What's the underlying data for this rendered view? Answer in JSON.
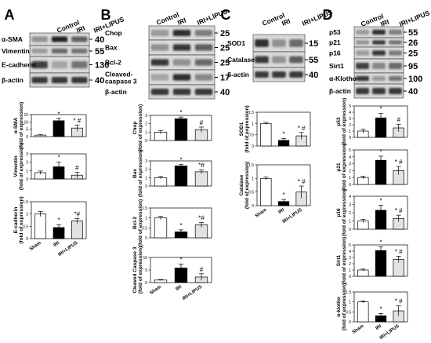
{
  "panels": [
    {
      "letter": "A",
      "columns": [
        "Control",
        "IRI",
        "IRI+LIPUS"
      ],
      "blots": [
        {
          "name": "α-SMA",
          "kda": "40"
        },
        {
          "name": "Vimentin",
          "kda": "55"
        },
        {
          "name": "E-cadherin",
          "kda": "130"
        },
        {
          "name": "β-actin",
          "kda": "40"
        }
      ]
    },
    {
      "letter": "B",
      "columns": [
        "Control",
        "IRI",
        "IRI+LIPUS"
      ],
      "blots": [
        {
          "name": "Chop",
          "kda": "25"
        },
        {
          "name": "Bax",
          "kda": "25"
        },
        {
          "name": "Bcl-2",
          "kda": "25"
        },
        {
          "name": "Cleaved-caspase 3",
          "kda": "17"
        },
        {
          "name": "β-actin",
          "kda": "40"
        }
      ]
    },
    {
      "letter": "C",
      "columns": [
        "Control",
        "IRI",
        "IRI+LIPUS"
      ],
      "blots": [
        {
          "name": "SOD1",
          "kda": "15"
        },
        {
          "name": "Catalase",
          "kda": "55"
        },
        {
          "name": "β-actin",
          "kda": "40"
        }
      ]
    },
    {
      "letter": "D",
      "columns": [
        "Control",
        "IRI",
        "IRI+LIPUS"
      ],
      "blots": [
        {
          "name": "p53",
          "kda": "55"
        },
        {
          "name": "p21",
          "kda": "26"
        },
        {
          "name": "p16",
          "kda": "25"
        },
        {
          "name": "Sirt1",
          "kda": "95"
        },
        {
          "name": "α-Klotho",
          "kda": "100"
        },
        {
          "name": "β-actin",
          "kda": "40"
        }
      ]
    }
  ],
  "chart_data": [
    {
      "panel": "A",
      "type": "bar",
      "ylabel": "α-SMA",
      "ylabel2": "(fold of expression)",
      "ylim": [
        0,
        15
      ],
      "yticks": [
        "0",
        "5",
        "10",
        "15"
      ],
      "categories": [
        "Sham",
        "IRI",
        "IRI+LIPUS"
      ],
      "values": [
        1,
        10.8,
        5.8
      ],
      "errors": [
        0.3,
        1.6,
        2.1
      ],
      "annotations": [
        "",
        "*",
        "* #"
      ],
      "colors": [
        "#ffffff",
        "#000000",
        "#e2e2e2"
      ],
      "show_xticks": false
    },
    {
      "panel": "A",
      "type": "bar",
      "ylabel": "Vimentin",
      "ylabel2": "(fold of expression)",
      "ylim": [
        0,
        3
      ],
      "yticks": [
        "0",
        "1",
        "2",
        "3"
      ],
      "categories": [
        "Sham",
        "IRI",
        "IRI+LIPUS"
      ],
      "values": [
        0.75,
        1.45,
        0.45
      ],
      "errors": [
        0.2,
        0.55,
        0.35
      ],
      "annotations": [
        "",
        "*",
        "#"
      ],
      "colors": [
        "#ffffff",
        "#000000",
        "#e2e2e2"
      ],
      "show_xticks": false
    },
    {
      "panel": "A",
      "type": "bar",
      "ylabel": "E-cadherin",
      "ylabel2": "(fold of expression)",
      "ylim": [
        0,
        1.5
      ],
      "yticks": [
        "0",
        "0.5",
        "1",
        "1.5"
      ],
      "categories": [
        "Sham",
        "IRI",
        "IRI+LIPUS"
      ],
      "values": [
        1,
        0.45,
        0.72
      ],
      "errors": [
        0.1,
        0.12,
        0.1
      ],
      "annotations": [
        "",
        "*",
        "*#"
      ],
      "colors": [
        "#ffffff",
        "#000000",
        "#e2e2e2"
      ],
      "show_xticks": true
    },
    {
      "panel": "B",
      "type": "bar",
      "ylabel": "Chop",
      "ylabel2": "(fold of expression)",
      "ylim": [
        0,
        3
      ],
      "yticks": [
        "0",
        "1",
        "2",
        "3"
      ],
      "categories": [
        "Sham",
        "IRI",
        "IRI+LIPUS"
      ],
      "values": [
        1,
        2.6,
        1.3
      ],
      "errors": [
        0.2,
        0.2,
        0.3
      ],
      "annotations": [
        "",
        "*",
        "#"
      ],
      "colors": [
        "#ffffff",
        "#000000",
        "#e2e2e2"
      ],
      "show_xticks": false
    },
    {
      "panel": "B",
      "type": "bar",
      "ylabel": "Bax",
      "ylabel2": "(fold of expression)",
      "ylim": [
        0,
        3
      ],
      "yticks": [
        "0",
        "1",
        "2",
        "3"
      ],
      "categories": [
        "Sham",
        "IRI",
        "IRI+LIPUS"
      ],
      "values": [
        1,
        2.4,
        1.7
      ],
      "errors": [
        0.15,
        0.2,
        0.25
      ],
      "annotations": [
        "",
        "*",
        "*#"
      ],
      "colors": [
        "#ffffff",
        "#000000",
        "#e2e2e2"
      ],
      "show_xticks": false
    },
    {
      "panel": "B",
      "type": "bar",
      "ylabel": "Bcl-2",
      "ylabel2": "(fold of expression)",
      "ylim": [
        0,
        1.5
      ],
      "yticks": [
        "0",
        "0.5",
        "1",
        "1.5"
      ],
      "categories": [
        "Sham",
        "IRI",
        "IRI+LIPUS"
      ],
      "values": [
        1,
        0.3,
        0.65
      ],
      "errors": [
        0.08,
        0.1,
        0.12
      ],
      "annotations": [
        "",
        "*",
        "*#"
      ],
      "colors": [
        "#ffffff",
        "#000000",
        "#e2e2e2"
      ],
      "show_xticks": false
    },
    {
      "panel": "B",
      "type": "bar",
      "ylabel": "Cleaved Caspase 3",
      "ylabel2": "(fold of expression)",
      "ylim": [
        0,
        10
      ],
      "yticks": [
        "0",
        "5",
        "10"
      ],
      "categories": [
        "Sham",
        "IRI",
        "IRI+LIPUS"
      ],
      "values": [
        1,
        5.8,
        2.2
      ],
      "errors": [
        0.2,
        1.6,
        1.3
      ],
      "annotations": [
        "",
        "*",
        "#"
      ],
      "colors": [
        "#ffffff",
        "#000000",
        "#e2e2e2"
      ],
      "show_xticks": true
    },
    {
      "panel": "C",
      "type": "bar",
      "ylabel": "SOD1",
      "ylabel2": "(fold of expression)",
      "ylim": [
        0,
        1.5
      ],
      "yticks": [
        "0",
        "0.5",
        "1",
        "1.5"
      ],
      "categories": [
        "Sham",
        "IRI",
        "IRI+LIPUS"
      ],
      "values": [
        1,
        0.25,
        0.45
      ],
      "errors": [
        0.05,
        0.08,
        0.15
      ],
      "annotations": [
        "",
        "*",
        "* #"
      ],
      "colors": [
        "#ffffff",
        "#000000",
        "#e2e2e2"
      ],
      "show_xticks": false
    },
    {
      "panel": "C",
      "type": "bar",
      "ylabel": "Catalase",
      "ylabel2": "(fold of expression)",
      "ylim": [
        0,
        1.5
      ],
      "yticks": [
        "0",
        "0.5",
        "1",
        "1.5"
      ],
      "categories": [
        "Sham",
        "IRI",
        "IRI+LIPUS"
      ],
      "values": [
        1,
        0.15,
        0.5
      ],
      "errors": [
        0.05,
        0.08,
        0.22
      ],
      "annotations": [
        "",
        "*",
        "* #"
      ],
      "colors": [
        "#ffffff",
        "#000000",
        "#e2e2e2"
      ],
      "show_xticks": true
    },
    {
      "panel": "D",
      "type": "bar",
      "ylabel": "p53",
      "ylabel2": "(fold of expression)",
      "ylim": [
        0,
        5
      ],
      "yticks": [
        "0",
        "1",
        "2",
        "3",
        "4",
        "5"
      ],
      "categories": [
        "Sham",
        "IRI",
        "IRI+LIPUS"
      ],
      "values": [
        1,
        3.1,
        1.5
      ],
      "errors": [
        0.3,
        0.7,
        0.6
      ],
      "annotations": [
        "",
        "*",
        "#"
      ],
      "colors": [
        "#ffffff",
        "#000000",
        "#e2e2e2"
      ],
      "show_xticks": false
    },
    {
      "panel": "D",
      "type": "bar",
      "ylabel": "p21",
      "ylabel2": "(fold of expression)",
      "ylim": [
        0,
        5
      ],
      "yticks": [
        "0",
        "1",
        "2",
        "3",
        "4",
        "5"
      ],
      "categories": [
        "Sham",
        "IRI",
        "IRI+LIPUS"
      ],
      "values": [
        1,
        3.5,
        2
      ],
      "errors": [
        0.2,
        0.6,
        0.6
      ],
      "annotations": [
        "",
        "*",
        "* #"
      ],
      "colors": [
        "#ffffff",
        "#000000",
        "#e2e2e2"
      ],
      "show_xticks": false
    },
    {
      "panel": "D",
      "type": "bar",
      "ylabel": "p16",
      "ylabel2": "(fold of expression)",
      "ylim": [
        0,
        4
      ],
      "yticks": [
        "0",
        "1",
        "2",
        "3",
        "4"
      ],
      "categories": [
        "Sham",
        "IRI",
        "IRI+LIPUS"
      ],
      "values": [
        1,
        2.3,
        1.3
      ],
      "errors": [
        0.2,
        0.6,
        0.4
      ],
      "annotations": [
        "",
        "*",
        "* #"
      ],
      "colors": [
        "#ffffff",
        "#000000",
        "#e2e2e2"
      ],
      "show_xticks": false
    },
    {
      "panel": "D",
      "type": "bar",
      "ylabel": "Sirt1",
      "ylabel2": "(fold of expression)",
      "ylim": [
        0,
        5
      ],
      "yticks": [
        "0",
        "1",
        "2",
        "3",
        "4",
        "5"
      ],
      "categories": [
        "Sham",
        "IRI",
        "IRI+LIPUS"
      ],
      "values": [
        1,
        4.1,
        2.7
      ],
      "errors": [
        0.15,
        0.6,
        0.5
      ],
      "annotations": [
        "",
        "*",
        "* #"
      ],
      "colors": [
        "#ffffff",
        "#000000",
        "#e2e2e2"
      ],
      "show_xticks": false
    },
    {
      "panel": "D",
      "type": "bar",
      "ylabel": "α-klotho",
      "ylabel2": "(fold of expression)",
      "ylim": [
        0,
        1.5
      ],
      "yticks": [
        "0",
        "0.5",
        "1",
        "1.5"
      ],
      "categories": [
        "Sham",
        "IRI",
        "IRI+LIPUS"
      ],
      "values": [
        1,
        0.3,
        0.55
      ],
      "errors": [
        0.05,
        0.12,
        0.25
      ],
      "annotations": [
        "",
        "*",
        "* #"
      ],
      "colors": [
        "#ffffff",
        "#000000",
        "#e2e2e2"
      ],
      "show_xticks": true
    }
  ]
}
